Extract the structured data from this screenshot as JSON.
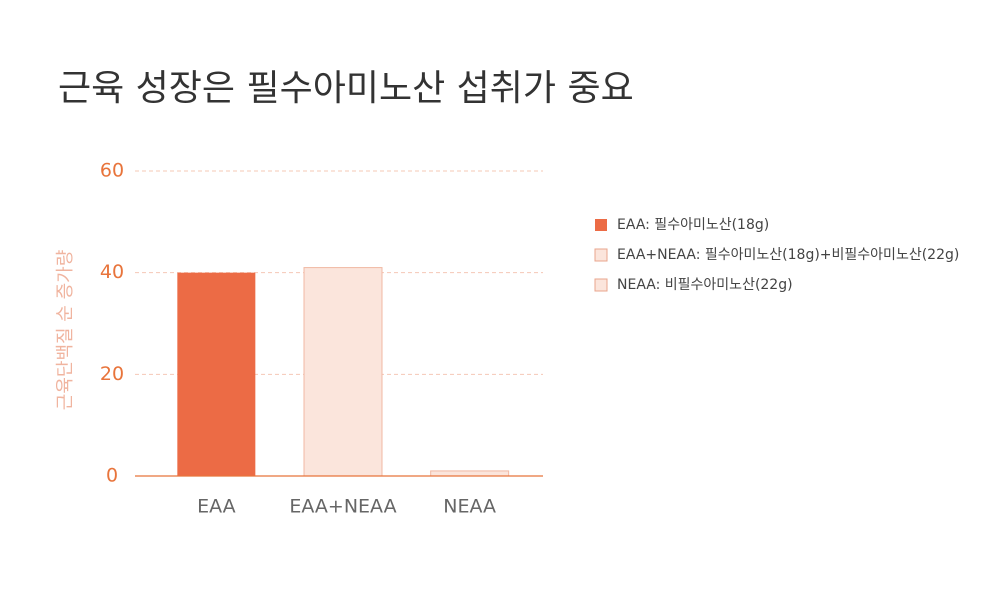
{
  "chart_data": {
    "type": "bar",
    "title": "근육 성장은 필수아미노산 섭취가 중요",
    "y_label": "근육단백질 순 증가량",
    "categories": [
      "EAA",
      "EAA+NEAA",
      "NEAA"
    ],
    "values": [
      40,
      41,
      1
    ],
    "colors": [
      "#ec6b45",
      "#fbe5dc",
      "#fbe5dc"
    ],
    "legend": [
      "EAA: 필수아미노산(18g)",
      "EAA+NEAA: 필수아미노산(18g)+비필수아미노산(22g)",
      "NEAA: 비필수아미노산(22g)"
    ],
    "ylim": [
      0,
      60
    ],
    "yticks": [
      0,
      20,
      40,
      60
    ],
    "grid": true
  }
}
